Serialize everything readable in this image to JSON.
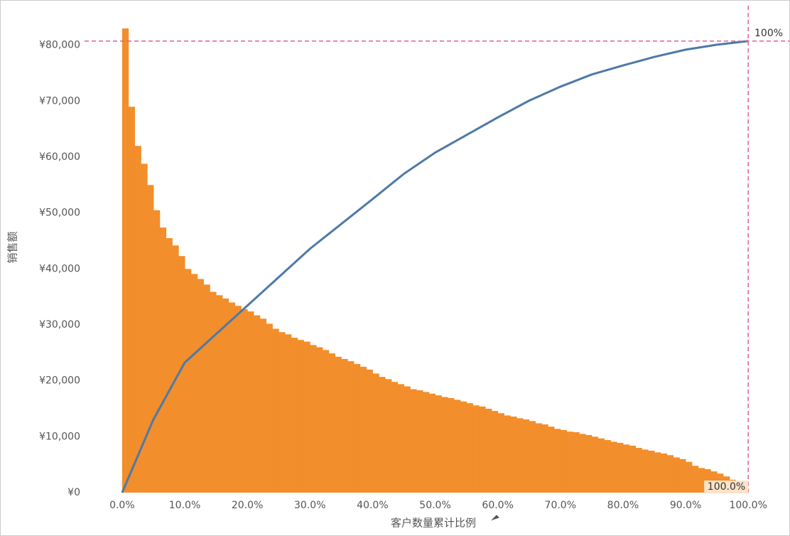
{
  "chart_data": {
    "type": "pareto",
    "x_label": "客户数量累计比例",
    "y_label": "销售额",
    "xlim": [
      -6,
      101
    ],
    "ylim": [
      0,
      83000
    ],
    "y2lim": [
      0,
      102.8
    ],
    "xticks": [
      {
        "value": 0,
        "label": "0.0%"
      },
      {
        "value": 10,
        "label": "10.0%"
      },
      {
        "value": 20,
        "label": "20.0%"
      },
      {
        "value": 30,
        "label": "30.0%"
      },
      {
        "value": 40,
        "label": "40.0%"
      },
      {
        "value": 50,
        "label": "50.0%"
      },
      {
        "value": 60,
        "label": "60.0%"
      },
      {
        "value": 70,
        "label": "70.0%"
      },
      {
        "value": 80,
        "label": "80.0%"
      },
      {
        "value": 90,
        "label": "90.0%"
      },
      {
        "value": 100,
        "label": "100.0%"
      }
    ],
    "yticks": [
      {
        "value": 0,
        "label": "¥0"
      },
      {
        "value": 10000,
        "label": "¥10,000"
      },
      {
        "value": 20000,
        "label": "¥20,000"
      },
      {
        "value": 30000,
        "label": "¥30,000"
      },
      {
        "value": 40000,
        "label": "¥40,000"
      },
      {
        "value": 50000,
        "label": "¥50,000"
      },
      {
        "value": 60000,
        "label": "¥60,000"
      },
      {
        "value": 70000,
        "label": "¥70,000"
      },
      {
        "value": 80000,
        "label": "¥80,000"
      }
    ],
    "series": [
      {
        "type": "bar",
        "color": "#f28e2b",
        "bins": [
          0,
          1,
          2,
          3,
          4,
          5,
          6,
          7,
          8,
          9,
          10,
          11,
          12,
          13,
          14,
          15,
          16,
          17,
          18,
          19,
          20,
          21,
          22,
          23,
          24,
          25,
          26,
          27,
          28,
          29,
          30,
          31,
          32,
          33,
          34,
          35,
          36,
          37,
          38,
          39,
          40,
          41,
          42,
          43,
          44,
          45,
          46,
          47,
          48,
          49,
          50,
          51,
          52,
          53,
          54,
          55,
          56,
          57,
          58,
          59,
          60,
          61,
          62,
          63,
          64,
          65,
          66,
          67,
          68,
          69,
          70,
          71,
          72,
          73,
          74,
          75,
          76,
          77,
          78,
          79,
          80,
          81,
          82,
          83,
          84,
          85,
          86,
          87,
          88,
          89,
          90,
          91,
          92,
          93,
          94,
          95,
          96,
          97,
          98,
          99,
          100
        ],
        "values": [
          83000,
          69000,
          62000,
          58800,
          55000,
          50500,
          47400,
          45500,
          44200,
          42300,
          40000,
          39100,
          38200,
          37200,
          35900,
          35300,
          34700,
          34000,
          33400,
          32800,
          32400,
          31700,
          31100,
          30200,
          29300,
          28700,
          28300,
          27700,
          27300,
          27000,
          26400,
          26000,
          25500,
          24900,
          24300,
          23900,
          23500,
          23000,
          22500,
          22000,
          21300,
          20700,
          20300,
          19800,
          19400,
          19000,
          18500,
          18300,
          18000,
          17700,
          17400,
          17100,
          16900,
          16600,
          16300,
          16000,
          15600,
          15400,
          15000,
          14600,
          14200,
          13800,
          13600,
          13300,
          13100,
          12800,
          12400,
          12200,
          11800,
          11400,
          11200,
          10900,
          10800,
          10500,
          10300,
          10000,
          9700,
          9400,
          9100,
          8900,
          8600,
          8400,
          8000,
          7700,
          7500,
          7200,
          7000,
          6700,
          6300,
          6000,
          5500,
          4800,
          4400,
          4200,
          3800,
          3400,
          2900,
          2300,
          1700,
          800
        ]
      },
      {
        "type": "line",
        "axis": "y2",
        "color": "#4e79a7",
        "x": [
          0,
          5,
          10,
          15,
          20,
          25,
          30,
          35,
          40,
          45,
          50,
          55,
          60,
          65,
          70,
          75,
          80,
          85,
          90,
          95,
          100
        ],
        "values": [
          0,
          16.2,
          28.8,
          35.1,
          41.4,
          47.7,
          54,
          59.5,
          65,
          70.6,
          75.3,
          79.2,
          83.1,
          86.8,
          89.9,
          92.6,
          94.6,
          96.5,
          98.1,
          99.2,
          100
        ]
      }
    ],
    "reference_lines": [
      {
        "axis": "y2",
        "value": 100,
        "label": "100%",
        "color": "#e15f99"
      },
      {
        "axis": "x",
        "value": 100,
        "label": "100.0%",
        "color": "#e15f99"
      }
    ]
  }
}
